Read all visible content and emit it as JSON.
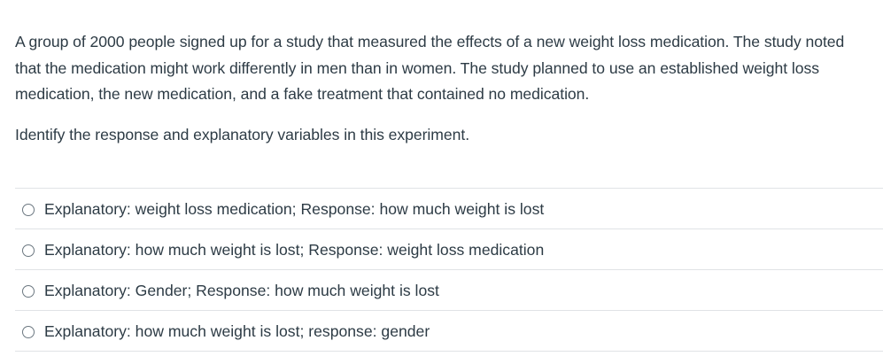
{
  "question": {
    "stem": "A group of 2000 people signed up for a study that measured the effects of a new weight loss medication. The study noted that the medication might work differently in men than in women. The study planned to use an established weight loss medication, the new medication, and a fake treatment that contained no medication.",
    "prompt": "Identify the response and explanatory variables in this experiment."
  },
  "answers": [
    {
      "label": "Explanatory: weight loss medication; Response: how much weight is lost"
    },
    {
      "label": "Explanatory: how much weight is lost; Response: weight loss medication"
    },
    {
      "label": "Explanatory: Gender; Response: how much weight is lost"
    },
    {
      "label": "Explanatory: how much weight is lost; response: gender"
    }
  ]
}
